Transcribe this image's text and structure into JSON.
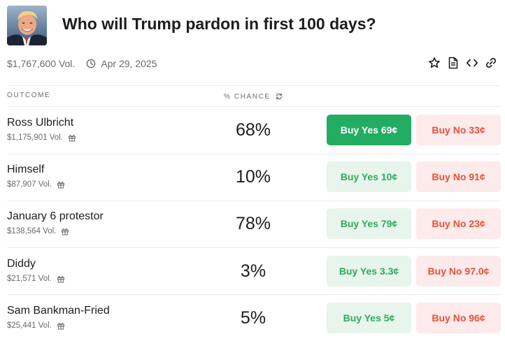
{
  "market": {
    "title": "Who will Trump pardon in first 100 days?",
    "volume": "$1,767,600 Vol.",
    "end_date": "Apr 29, 2025",
    "avatar_icon": "trump-portrait-icon"
  },
  "actions": {
    "icons": [
      "star-icon",
      "document-icon",
      "code-embed-icon",
      "link-icon"
    ]
  },
  "table": {
    "col_outcome": "OUTCOME",
    "col_chance": "% CHANCE",
    "rows": [
      {
        "name": "Ross Ulbricht",
        "volume": "$1,175,901 Vol.",
        "chance": "68%",
        "yes": "Buy Yes 69¢",
        "no": "Buy No 33¢"
      },
      {
        "name": "Himself",
        "volume": "$87,907 Vol.",
        "chance": "10%",
        "yes": "Buy Yes 10¢",
        "no": "Buy No 91¢"
      },
      {
        "name": "January 6 protestor",
        "volume": "$138,564 Vol.",
        "chance": "78%",
        "yes": "Buy Yes 79¢",
        "no": "Buy No 23¢"
      },
      {
        "name": "Diddy",
        "volume": "$21,571 Vol.",
        "chance": "3%",
        "yes": "Buy Yes 3.3¢",
        "no": "Buy No 97.0¢"
      },
      {
        "name": "Sam Bankman-Fried",
        "volume": "$25,441 Vol.",
        "chance": "5%",
        "yes": "Buy Yes 5¢",
        "no": "Buy No 96¢"
      }
    ]
  },
  "colors": {
    "yes_active": "#23ad62",
    "yes_bg": "#e7f5ec",
    "yes_text": "#2faa5d",
    "no_bg": "#fcebea",
    "no_text": "#e4523c"
  }
}
